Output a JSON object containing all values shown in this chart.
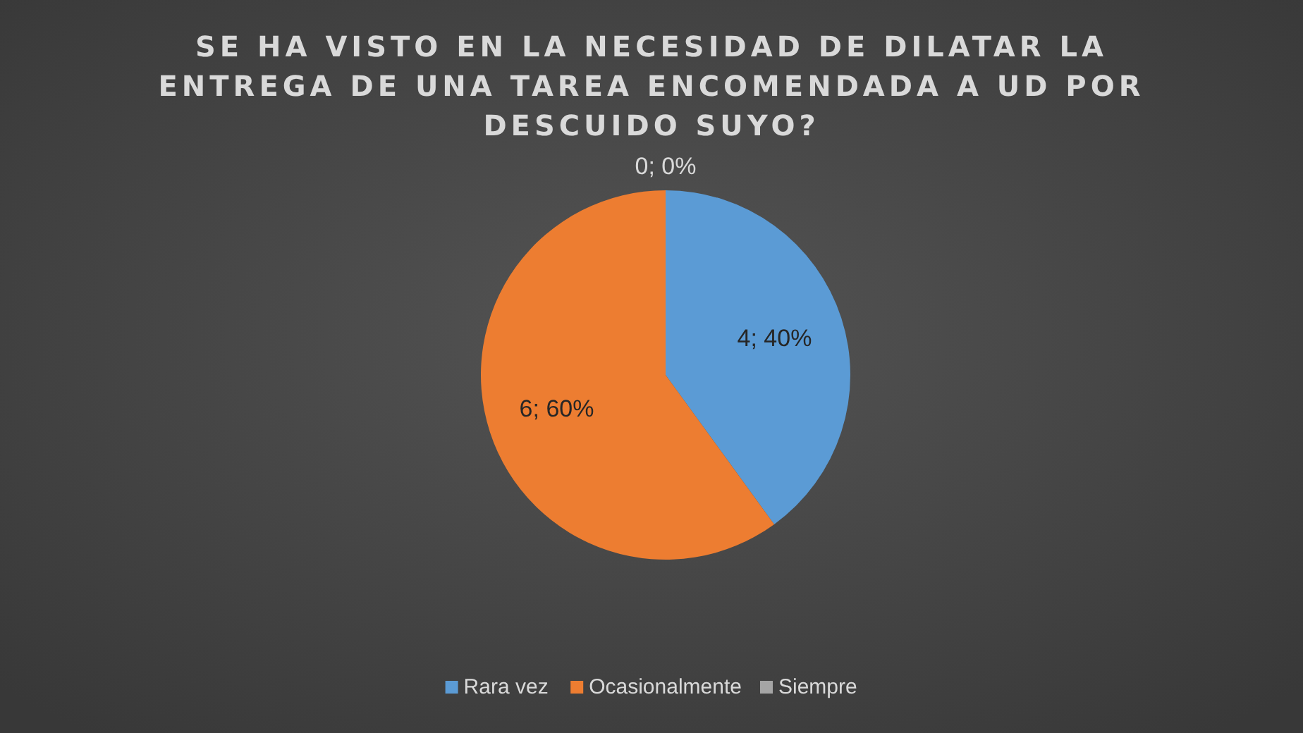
{
  "chart_data": {
    "type": "pie",
    "title": "SE HA VISTO EN LA NECESIDAD DE DILATAR LA ENTREGA DE UNA TAREA ENCOMENDADA A UD POR DESCUIDO SUYO?",
    "categories": [
      "Rara vez",
      "Ocasionalmente",
      "Siempre"
    ],
    "values": [
      4,
      6,
      0
    ],
    "colors": [
      "#5b9bd5",
      "#ed7d31",
      "#a5a5a5"
    ],
    "value_labels": [
      "4; 40%",
      "6; 60%",
      "0; 0%"
    ],
    "legend": "bottom"
  }
}
